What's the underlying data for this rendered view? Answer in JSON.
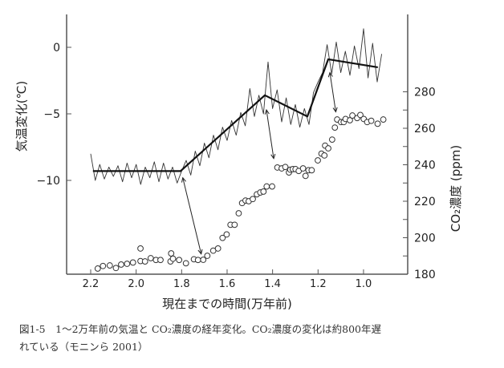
{
  "chart_data": {
    "type": "line",
    "xlabel": "現在までの時間(万年前)",
    "ylabel_left": "気温変化(℃)",
    "ylabel_right": "CO₂濃度 (ppm)",
    "xlim": [
      2.3,
      0.85
    ],
    "ylim_left": [
      -17.0,
      2.2
    ],
    "ylim_right": [
      180,
      295
    ],
    "x_ticks": [
      "2.2",
      "2.0",
      "1.8",
      "1.6",
      "1.4",
      "1.2",
      "1.0"
    ],
    "x_tick_values": [
      2.2,
      2.0,
      1.8,
      1.6,
      1.4,
      1.2,
      1.0
    ],
    "left_ticks": [
      "0",
      "−5",
      "−10"
    ],
    "left_tick_values": [
      0,
      -5,
      -10
    ],
    "right_ticks": [
      "180",
      "200",
      "220",
      "240",
      "260",
      "280"
    ],
    "right_tick_values": [
      180,
      200,
      220,
      240,
      260,
      280
    ],
    "right_minor_tick_values": [
      190,
      210,
      230,
      250,
      270
    ],
    "series": [
      {
        "name": "temperature",
        "axis": "left",
        "style": "thin-line",
        "color": "#333333",
        "x": [
          2.2,
          2.18,
          2.16,
          2.14,
          2.12,
          2.1,
          2.08,
          2.06,
          2.04,
          2.02,
          2.0,
          1.98,
          1.96,
          1.94,
          1.92,
          1.9,
          1.88,
          1.86,
          1.84,
          1.82,
          1.8,
          1.78,
          1.76,
          1.74,
          1.72,
          1.7,
          1.68,
          1.66,
          1.64,
          1.62,
          1.6,
          1.58,
          1.56,
          1.54,
          1.52,
          1.5,
          1.48,
          1.46,
          1.44,
          1.42,
          1.4,
          1.38,
          1.36,
          1.34,
          1.32,
          1.3,
          1.28,
          1.26,
          1.24,
          1.22,
          1.2,
          1.18,
          1.16,
          1.14,
          1.12,
          1.1,
          1.08,
          1.06,
          1.04,
          1.02,
          1.0,
          0.98,
          0.96,
          0.94,
          0.92
        ],
        "y": [
          -8.0,
          -10.0,
          -8.8,
          -9.9,
          -9.0,
          -9.7,
          -8.9,
          -10.1,
          -8.7,
          -9.8,
          -8.8,
          -10.3,
          -9.0,
          -9.8,
          -8.6,
          -10.1,
          -8.7,
          -9.9,
          -9.0,
          -10.2,
          -9.3,
          -8.5,
          -9.6,
          -7.8,
          -8.9,
          -7.2,
          -8.3,
          -6.6,
          -7.7,
          -6.0,
          -7.0,
          -5.5,
          -6.6,
          -4.9,
          -5.9,
          -3.1,
          -5.2,
          -3.6,
          -5.0,
          -1.1,
          -4.6,
          -3.2,
          -5.6,
          -3.8,
          -5.8,
          -4.3,
          -6.0,
          -4.6,
          -5.8,
          -3.4,
          -2.6,
          -1.9,
          0.2,
          -2.0,
          0.4,
          -1.9,
          -0.3,
          -2.1,
          0.1,
          -1.6,
          1.4,
          -2.3,
          0.3,
          -2.6,
          -0.5
        ]
      },
      {
        "name": "temperature-trend",
        "axis": "left",
        "style": "thick-line",
        "color": "#111111",
        "x": [
          2.19,
          1.805,
          1.434,
          1.247,
          1.155,
          0.937
        ],
        "y": [
          -9.3,
          -9.3,
          -3.6,
          -5.2,
          -0.9,
          -1.5
        ]
      },
      {
        "name": "co2",
        "axis": "right",
        "style": "open-circles",
        "color": "#333333",
        "x": [
          2.169,
          2.146,
          2.116,
          2.089,
          2.066,
          2.04,
          2.014,
          1.981,
          1.981,
          1.961,
          1.936,
          1.913,
          1.893,
          1.846,
          1.849,
          1.838,
          1.811,
          1.781,
          1.746,
          1.728,
          1.705,
          1.687,
          1.661,
          1.64,
          1.62,
          1.602,
          1.585,
          1.567,
          1.549,
          1.534,
          1.519,
          1.505,
          1.487,
          1.469,
          1.454,
          1.44,
          1.426,
          1.402,
          1.379,
          1.36,
          1.344,
          1.328,
          1.322,
          1.311,
          1.299,
          1.285,
          1.266,
          1.255,
          1.242,
          1.228,
          1.201,
          1.185,
          1.172,
          1.169,
          1.155,
          1.138,
          1.126,
          1.116,
          1.099,
          1.087,
          1.079,
          1.06,
          1.049,
          1.028,
          1.014,
          0.999,
          0.984,
          0.966,
          0.938,
          0.913
        ],
        "y": [
          183.1,
          184.5,
          184.8,
          183.4,
          185.3,
          185.7,
          186.4,
          194.1,
          187.2,
          187.0,
          188.8,
          187.8,
          187.8,
          191.4,
          187.0,
          188.5,
          187.8,
          186.0,
          188.2,
          187.8,
          187.9,
          190.1,
          192.9,
          194.1,
          199.9,
          201.8,
          207.1,
          207.1,
          213.4,
          219.0,
          220.4,
          220.0,
          221.2,
          223.8,
          224.8,
          225.3,
          228.1,
          228.1,
          238.5,
          238.0,
          238.8,
          235.8,
          237.3,
          237.6,
          237.6,
          236.6,
          238.0,
          233.9,
          237.0,
          237.0,
          242.4,
          246.1,
          245.1,
          250.5,
          249.0,
          253.8,
          260.4,
          264.8,
          263.4,
          263.4,
          265.1,
          264.4,
          267.0,
          265.6,
          267.3,
          265.1,
          263.4,
          264.1,
          262.5,
          264.8
        ]
      }
    ],
    "annotations": [
      {
        "type": "double-arrow",
        "from": {
          "x": 1.795,
          "temp": -9.8
        },
        "to": {
          "x": 1.714,
          "ppm": 191.1
        }
      },
      {
        "type": "double-arrow",
        "from": {
          "x": 1.427,
          "temp": -4.7
        },
        "to": {
          "x": 1.395,
          "ppm": 243.4
        }
      },
      {
        "type": "double-arrow",
        "from": {
          "x": 1.148,
          "temp": -1.9
        },
        "to": {
          "x": 1.122,
          "ppm": 269.0
        }
      }
    ]
  },
  "caption": {
    "line1": "図1-5　1～2万年前の気温と CO₂濃度の経年変化。CO₂濃度の変化は約800年遅",
    "line2": "れている（モニンら 2001）"
  }
}
